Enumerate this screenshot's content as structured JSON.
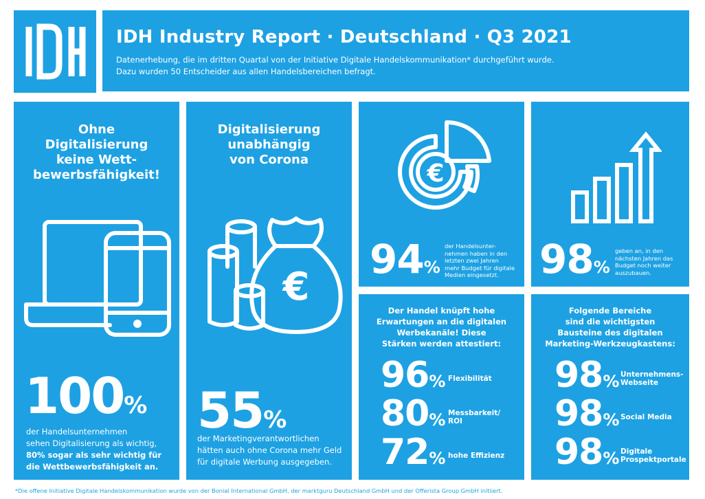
{
  "header": {
    "title": "IDH Industry Report · Deutschland · Q3 2021",
    "subtitle_line1": "Datenerhebung, die im dritten Quartal von der Initiative Digitale Handelskommunikation* durchgeführt wurde.",
    "subtitle_line2": "Dazu wurden 50 Entscheider aus allen Handelsbereichen befragt."
  },
  "logo": {
    "text": "IDH"
  },
  "panel1": {
    "title_lines": [
      "Ohne",
      "Digitalisierung",
      "keine Wett-",
      "bewerbsfähigkeit!"
    ],
    "value": "100",
    "unit": "%",
    "desc_line1": "der Handelsunternehmen",
    "desc_line2": "sehen Digitalisierung als wichtig,",
    "desc_bold1": "80% sogar als sehr wichtig für",
    "desc_bold2": "die Wettbewerbsfähigkeit an."
  },
  "panel2": {
    "title_lines": [
      "Digitalisierung",
      "unabhängig",
      "von Corona"
    ],
    "value": "55",
    "unit": "%",
    "desc_line1": "der Marketingverantwortlichen",
    "desc_line2": "hätten auch ohne Corona mehr Geld",
    "desc_line3": "für digitale Werbung ausgegeben."
  },
  "panel3": {
    "value": "94",
    "unit": "%",
    "desc_lines": [
      "der Handelsunter-",
      "nehmen haben in den",
      "letzten zwei Jahren",
      "mehr Budget für digitale",
      "Medien eingesetzt."
    ]
  },
  "panel4": {
    "value": "98",
    "unit": "%",
    "desc_lines": [
      "geben an, in den",
      "nächsten Jahren das",
      "Budget noch weiter",
      "auszubauen."
    ]
  },
  "panel5": {
    "title_lines": [
      "Der Handel knüpft hohe",
      "Erwartungen an die digitalen",
      "Werbekanäle! Diese",
      "Stärken werden attestiert:"
    ],
    "items": [
      {
        "value": "96",
        "unit": "%",
        "label_lines": [
          "Flexibilität"
        ]
      },
      {
        "value": "80",
        "unit": "%",
        "label_lines": [
          "Messbarkeit/",
          "ROI"
        ]
      },
      {
        "value": "72",
        "unit": "%",
        "label_lines": [
          "hohe Effizienz"
        ]
      }
    ]
  },
  "panel6": {
    "title_lines": [
      "Folgende Bereiche",
      "sind die wichtigsten",
      "Bausteine des digitalen",
      "Marketing-Werkzeugkastens:"
    ],
    "items": [
      {
        "value": "98",
        "unit": "%",
        "label_lines": [
          "Unternehmens-",
          "Webseite"
        ]
      },
      {
        "value": "98",
        "unit": "%",
        "label_lines": [
          "Social Media"
        ]
      },
      {
        "value": "98",
        "unit": "%",
        "label_lines": [
          "Digitale",
          "Prospektportale"
        ]
      }
    ]
  },
  "footnote": "*Die offene Initiative Digitale Handelskommunikation wurde von der Bonial International GmbH, der marktguru Deutschland GmbH und der Offerista Group GmbH initiiert.",
  "colors": {
    "brand_blue": "#1da1e3",
    "white": "#ffffff"
  },
  "icons": [
    "laptop-phone-icon",
    "money-bag-coins-icon",
    "euro-pie-chart-icon",
    "bar-chart-arrow-icon"
  ]
}
